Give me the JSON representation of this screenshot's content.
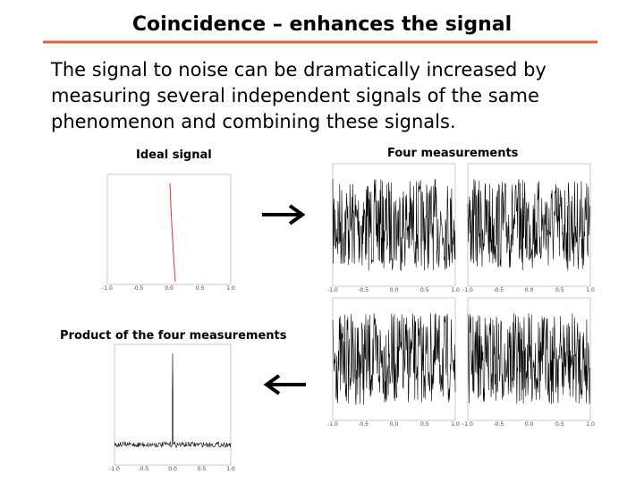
{
  "header": {
    "title": "Coincidence – enhances the signal"
  },
  "body": {
    "lines": [
      "The signal to noise can be dramatically increased by",
      "measuring several independent signals of the same",
      "phenomenon and combining these signals."
    ]
  },
  "labels": {
    "ideal": "Ideal signal",
    "four": "Four measurements",
    "product": "Product of the four measurements"
  },
  "plot_xticks": [
    "-1.0",
    "-0.5",
    "0.0",
    "0.5",
    "1.0"
  ]
}
